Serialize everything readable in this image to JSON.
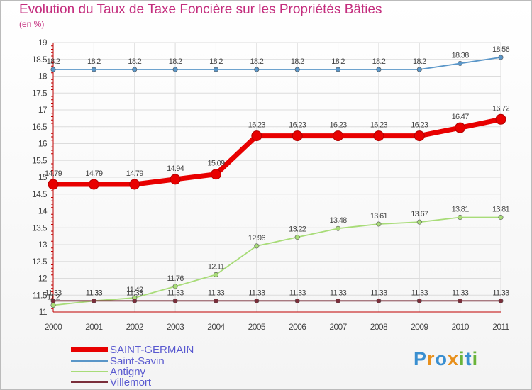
{
  "title": "Evolution du Taux de Taxe Foncière sur les Propriétés Bâties",
  "unit": "(en %)",
  "logo": {
    "letters": [
      "P",
      "r",
      "o",
      "x",
      "i",
      "t",
      "i"
    ],
    "colors": [
      "#3a8fd0",
      "#e8901c",
      "#3a8fd0",
      "#e8901c",
      "#6ab43a",
      "#3a8fd0",
      "#6ab43a"
    ]
  },
  "chart_data": {
    "type": "line",
    "x": [
      "2000",
      "2001",
      "2002",
      "2003",
      "2004",
      "2005",
      "2006",
      "2007",
      "2008",
      "2009",
      "2010",
      "2011"
    ],
    "ylim": [
      11,
      19
    ],
    "yticks": [
      "11",
      "11.5",
      "12",
      "12.5",
      "13",
      "13.5",
      "14",
      "14.5",
      "15",
      "15.5",
      "16",
      "16.5",
      "17",
      "17.5",
      "18",
      "18.5",
      "19"
    ],
    "grid": true,
    "legend_position": "bottom-left",
    "series": [
      {
        "name": "Saint-Savin",
        "color": "#5a96c8",
        "values": [
          18.2,
          18.2,
          18.2,
          18.2,
          18.2,
          18.2,
          18.2,
          18.2,
          18.2,
          18.2,
          18.38,
          18.56
        ],
        "labels": [
          "18.2",
          "18.2",
          "18.2",
          "18.2",
          "18.2",
          "18.2",
          "18.2",
          "18.2",
          "18.2",
          "18.2",
          "18.38",
          "18.56"
        ]
      },
      {
        "name": "Antigny",
        "color": "#a8dc78",
        "values": [
          11.2,
          11.33,
          11.42,
          11.76,
          12.11,
          12.96,
          13.22,
          13.48,
          13.61,
          13.67,
          13.81,
          13.81
        ],
        "labels": [
          "11.2",
          "11.33",
          "11.42",
          "11.76",
          "12.11",
          "12.96",
          "13.22",
          "13.48",
          "13.61",
          "13.67",
          "13.81",
          "13.81"
        ]
      },
      {
        "name": "Villemort",
        "color": "#7a2e3a",
        "values": [
          11.33,
          11.33,
          11.33,
          11.33,
          11.33,
          11.33,
          11.33,
          11.33,
          11.33,
          11.33,
          11.33,
          11.33
        ],
        "labels": [
          "11.33",
          "11.33",
          "11.33",
          "11.33",
          "11.33",
          "11.33",
          "11.33",
          "11.33",
          "11.33",
          "11.33",
          "11.33",
          "11.33"
        ]
      },
      {
        "name": "SAINT-GERMAIN",
        "color": "#e80000",
        "values": [
          14.79,
          14.79,
          14.79,
          14.94,
          15.09,
          16.23,
          16.23,
          16.23,
          16.23,
          16.23,
          16.47,
          16.72
        ],
        "labels": [
          "14.79",
          "14.79",
          "14.79",
          "14.94",
          "15.09",
          "16.23",
          "16.23",
          "16.23",
          "16.23",
          "16.23",
          "16.47",
          "16.72"
        ]
      }
    ],
    "legend": [
      "SAINT-GERMAIN",
      "Saint-Savin",
      "Antigny",
      "Villemort"
    ]
  }
}
